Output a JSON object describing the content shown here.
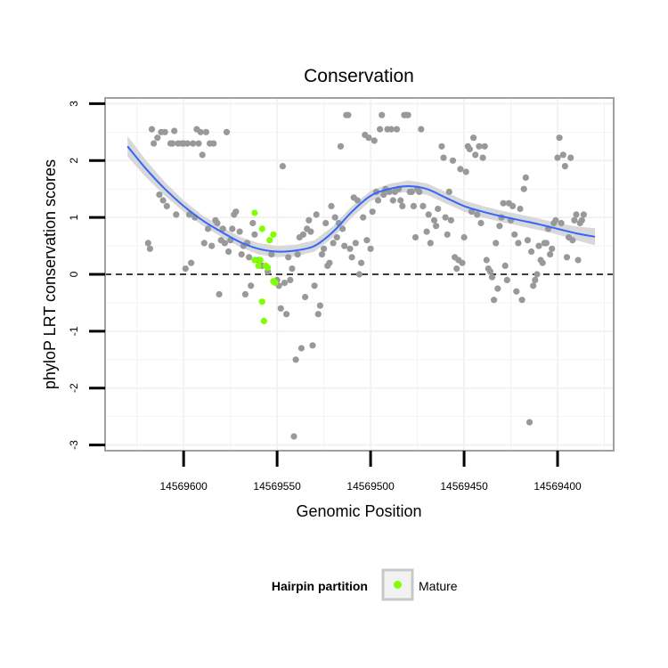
{
  "chart_data": {
    "type": "scatter",
    "title": "Conservation",
    "xlabel": "Genomic Position",
    "ylabel": "phyloP LRT conservation scores",
    "x_reversed": true,
    "xlim": [
      14569642,
      14569370
    ],
    "ylim": [
      -3.1,
      3.1
    ],
    "x_ticks": [
      14569600,
      14569550,
      14569500,
      14569450,
      14569400
    ],
    "x_tick_labels": [
      "14569600",
      "14569550",
      "14569500",
      "14569450",
      "14569400"
    ],
    "y_ticks": [
      -3,
      -2,
      -1,
      0,
      1,
      2,
      3
    ],
    "y_tick_labels": [
      "-3",
      "-2",
      "-1",
      "0",
      "1",
      "2",
      "3"
    ],
    "grid": true,
    "reference_line": {
      "y": 0,
      "style": "dashed"
    },
    "legend": {
      "title": "Hairpin partition",
      "position": "bottom",
      "entries": [
        "Mature"
      ]
    },
    "colors": {
      "other": "#999999",
      "mature": "#7fff00",
      "smooth": "#3366ff",
      "band": "#d4d4d4",
      "panel_border": "#a0a0a0",
      "grid": "#f2f2f2"
    },
    "series": [
      {
        "name": "Mature",
        "color": "#7fff00",
        "points": [
          [
            14569562,
            1.08
          ],
          [
            14569562,
            0.25
          ],
          [
            14569560,
            0.15
          ],
          [
            14569559,
            0.25
          ],
          [
            14569558,
            0.8
          ],
          [
            14569556,
            0.15
          ],
          [
            14569554,
            0.6
          ],
          [
            14569552,
            0.7
          ],
          [
            14569551,
            -0.15
          ],
          [
            14569552,
            -0.12
          ],
          [
            14569558,
            -0.48
          ],
          [
            14569557,
            -0.82
          ],
          [
            14569555,
            0.12
          ]
        ]
      },
      {
        "color": "#999999",
        "points": [
          [
            14569619,
            0.55
          ],
          [
            14569618,
            0.45
          ],
          [
            14569617,
            2.55
          ],
          [
            14569616,
            2.3
          ],
          [
            14569614,
            2.4
          ],
          [
            14569613,
            1.4
          ],
          [
            14569612,
            2.5
          ],
          [
            14569610,
            2.5
          ],
          [
            14569611,
            1.3
          ],
          [
            14569609,
            1.2
          ],
          [
            14569607,
            2.3
          ],
          [
            14569606,
            2.3
          ],
          [
            14569605,
            2.52
          ],
          [
            14569604,
            1.05
          ],
          [
            14569603,
            2.3
          ],
          [
            14569601,
            2.3
          ],
          [
            14569600,
            2.3
          ],
          [
            14569599,
            0.1
          ],
          [
            14569598,
            2.3
          ],
          [
            14569597,
            1.05
          ],
          [
            14569596,
            0.2
          ],
          [
            14569595,
            2.3
          ],
          [
            14569594,
            1.0
          ],
          [
            14569593,
            2.55
          ],
          [
            14569592,
            2.3
          ],
          [
            14569591,
            2.5
          ],
          [
            14569590,
            2.1
          ],
          [
            14569589,
            0.55
          ],
          [
            14569588,
            2.5
          ],
          [
            14569587,
            0.8
          ],
          [
            14569586,
            2.3
          ],
          [
            14569585,
            0.5
          ],
          [
            14569584,
            2.3
          ],
          [
            14569583,
            0.95
          ],
          [
            14569582,
            0.9
          ],
          [
            14569581,
            -0.35
          ],
          [
            14569580,
            0.6
          ],
          [
            14569579,
            0.8
          ],
          [
            14569578,
            0.55
          ],
          [
            14569577,
            2.5
          ],
          [
            14569576,
            0.4
          ],
          [
            14569575,
            0.6
          ],
          [
            14569574,
            0.8
          ],
          [
            14569573,
            1.05
          ],
          [
            14569572,
            1.1
          ],
          [
            14569570,
            0.75
          ],
          [
            14569569,
            0.35
          ],
          [
            14569568,
            0.5
          ],
          [
            14569567,
            -0.35
          ],
          [
            14569566,
            0.55
          ],
          [
            14569565,
            0.3
          ],
          [
            14569564,
            -0.2
          ],
          [
            14569563,
            0.9
          ],
          [
            14569562,
            0.7
          ],
          [
            14569560,
            0.25
          ],
          [
            14569558,
            0.15
          ],
          [
            14569555,
            0.05
          ],
          [
            14569553,
            0.35
          ],
          [
            14569550,
            -0.1
          ],
          [
            14569549,
            -0.2
          ],
          [
            14569548,
            -0.6
          ],
          [
            14569547,
            1.9
          ],
          [
            14569546,
            -0.15
          ],
          [
            14569545,
            -0.7
          ],
          [
            14569544,
            0.3
          ],
          [
            14569543,
            -0.1
          ],
          [
            14569542,
            0.1
          ],
          [
            14569541,
            -2.85
          ],
          [
            14569540,
            -1.5
          ],
          [
            14569539,
            0.35
          ],
          [
            14569538,
            0.65
          ],
          [
            14569537,
            -1.3
          ],
          [
            14569536,
            0.7
          ],
          [
            14569535,
            -0.4
          ],
          [
            14569534,
            0.8
          ],
          [
            14569533,
            0.95
          ],
          [
            14569532,
            0.75
          ],
          [
            14569531,
            -1.25
          ],
          [
            14569530,
            -0.2
          ],
          [
            14569529,
            1.05
          ],
          [
            14569528,
            -0.7
          ],
          [
            14569527,
            -0.55
          ],
          [
            14569526,
            0.35
          ],
          [
            14569525,
            0.45
          ],
          [
            14569524,
            0.9
          ],
          [
            14569523,
            0.15
          ],
          [
            14569522,
            0.2
          ],
          [
            14569521,
            1.2
          ],
          [
            14569520,
            0.55
          ],
          [
            14569519,
            1.0
          ],
          [
            14569518,
            0.65
          ],
          [
            14569517,
            0.9
          ],
          [
            14569516,
            2.25
          ],
          [
            14569515,
            0.8
          ],
          [
            14569514,
            0.5
          ],
          [
            14569513,
            2.8
          ],
          [
            14569512,
            2.8
          ],
          [
            14569511,
            0.45
          ],
          [
            14569510,
            0.3
          ],
          [
            14569509,
            1.35
          ],
          [
            14569508,
            0.55
          ],
          [
            14569507,
            1.3
          ],
          [
            14569506,
            0.0
          ],
          [
            14569505,
            0.2
          ],
          [
            14569504,
            1.0
          ],
          [
            14569503,
            2.45
          ],
          [
            14569502,
            0.6
          ],
          [
            14569501,
            2.4
          ],
          [
            14569500,
            0.45
          ],
          [
            14569499,
            1.1
          ],
          [
            14569498,
            2.35
          ],
          [
            14569497,
            1.45
          ],
          [
            14569496,
            1.3
          ],
          [
            14569495,
            2.55
          ],
          [
            14569494,
            2.8
          ],
          [
            14569493,
            1.4
          ],
          [
            14569492,
            1.5
          ],
          [
            14569491,
            2.55
          ],
          [
            14569490,
            1.45
          ],
          [
            14569489,
            2.55
          ],
          [
            14569488,
            1.3
          ],
          [
            14569487,
            1.45
          ],
          [
            14569486,
            2.55
          ],
          [
            14569485,
            1.5
          ],
          [
            14569484,
            1.3
          ],
          [
            14569483,
            1.2
          ],
          [
            14569482,
            2.8
          ],
          [
            14569481,
            2.8
          ],
          [
            14569480,
            2.8
          ],
          [
            14569479,
            1.45
          ],
          [
            14569478,
            1.45
          ],
          [
            14569477,
            1.2
          ],
          [
            14569476,
            0.65
          ],
          [
            14569475,
            1.5
          ],
          [
            14569474,
            1.45
          ],
          [
            14569473,
            2.55
          ],
          [
            14569472,
            1.2
          ],
          [
            14569470,
            0.75
          ],
          [
            14569469,
            1.05
          ],
          [
            14569468,
            0.55
          ],
          [
            14569466,
            0.95
          ],
          [
            14569465,
            0.85
          ],
          [
            14569464,
            1.15
          ],
          [
            14569462,
            2.25
          ],
          [
            14569461,
            2.05
          ],
          [
            14569460,
            1.0
          ],
          [
            14569459,
            0.7
          ],
          [
            14569458,
            1.45
          ],
          [
            14569457,
            0.95
          ],
          [
            14569456,
            2.0
          ],
          [
            14569455,
            0.3
          ],
          [
            14569454,
            0.1
          ],
          [
            14569453,
            0.25
          ],
          [
            14569452,
            1.85
          ],
          [
            14569451,
            0.2
          ],
          [
            14569450,
            0.65
          ],
          [
            14569449,
            1.8
          ],
          [
            14569448,
            2.25
          ],
          [
            14569447,
            2.2
          ],
          [
            14569446,
            1.1
          ],
          [
            14569445,
            2.4
          ],
          [
            14569444,
            2.1
          ],
          [
            14569443,
            1.05
          ],
          [
            14569442,
            2.25
          ],
          [
            14569441,
            0.9
          ],
          [
            14569440,
            2.05
          ],
          [
            14569439,
            2.25
          ],
          [
            14569438,
            0.25
          ],
          [
            14569437,
            0.1
          ],
          [
            14569436,
            0.05
          ],
          [
            14569435,
            -0.05
          ],
          [
            14569434,
            -0.45
          ],
          [
            14569433,
            0.55
          ],
          [
            14569432,
            -0.25
          ],
          [
            14569431,
            0.85
          ],
          [
            14569430,
            1.0
          ],
          [
            14569429,
            1.25
          ],
          [
            14569428,
            0.15
          ],
          [
            14569427,
            -0.1
          ],
          [
            14569426,
            1.25
          ],
          [
            14569425,
            0.95
          ],
          [
            14569424,
            1.2
          ],
          [
            14569423,
            0.7
          ],
          [
            14569422,
            -0.3
          ],
          [
            14569421,
            0.55
          ],
          [
            14569420,
            1.15
          ],
          [
            14569419,
            -0.45
          ],
          [
            14569418,
            1.5
          ],
          [
            14569417,
            1.7
          ],
          [
            14569416,
            0.6
          ],
          [
            14569415,
            -2.6
          ],
          [
            14569414,
            0.4
          ],
          [
            14569413,
            -0.2
          ],
          [
            14569412,
            -0.1
          ],
          [
            14569411,
            0.0
          ],
          [
            14569410,
            0.5
          ],
          [
            14569409,
            0.25
          ],
          [
            14569408,
            0.2
          ],
          [
            14569407,
            0.55
          ],
          [
            14569406,
            0.55
          ],
          [
            14569405,
            0.8
          ],
          [
            14569404,
            0.35
          ],
          [
            14569403,
            0.45
          ],
          [
            14569402,
            0.9
          ],
          [
            14569401,
            0.95
          ],
          [
            14569400,
            2.05
          ],
          [
            14569399,
            2.4
          ],
          [
            14569398,
            0.9
          ],
          [
            14569397,
            2.1
          ],
          [
            14569396,
            1.9
          ],
          [
            14569395,
            0.3
          ],
          [
            14569394,
            0.65
          ],
          [
            14569393,
            2.05
          ],
          [
            14569392,
            0.6
          ],
          [
            14569391,
            0.95
          ],
          [
            14569390,
            1.05
          ],
          [
            14569389,
            0.25
          ],
          [
            14569388,
            0.9
          ],
          [
            14569387,
            0.95
          ],
          [
            14569386,
            1.05
          ]
        ]
      }
    ],
    "smooth": {
      "x": [
        14569630,
        14569620,
        14569610,
        14569600,
        14569590,
        14569580,
        14569570,
        14569560,
        14569550,
        14569540,
        14569530,
        14569520,
        14569510,
        14569500,
        14569490,
        14569480,
        14569470,
        14569460,
        14569450,
        14569440,
        14569430,
        14569420,
        14569410,
        14569400,
        14569390,
        14569380
      ],
      "y": [
        2.25,
        1.85,
        1.5,
        1.2,
        0.95,
        0.75,
        0.57,
        0.45,
        0.4,
        0.42,
        0.5,
        0.75,
        1.1,
        1.38,
        1.5,
        1.55,
        1.5,
        1.35,
        1.2,
        1.1,
        1.02,
        0.95,
        0.88,
        0.8,
        0.72,
        0.66
      ],
      "se": [
        0.18,
        0.15,
        0.12,
        0.1,
        0.09,
        0.09,
        0.09,
        0.1,
        0.1,
        0.1,
        0.1,
        0.1,
        0.1,
        0.09,
        0.09,
        0.1,
        0.1,
        0.1,
        0.1,
        0.1,
        0.1,
        0.1,
        0.1,
        0.1,
        0.12,
        0.15
      ]
    }
  }
}
